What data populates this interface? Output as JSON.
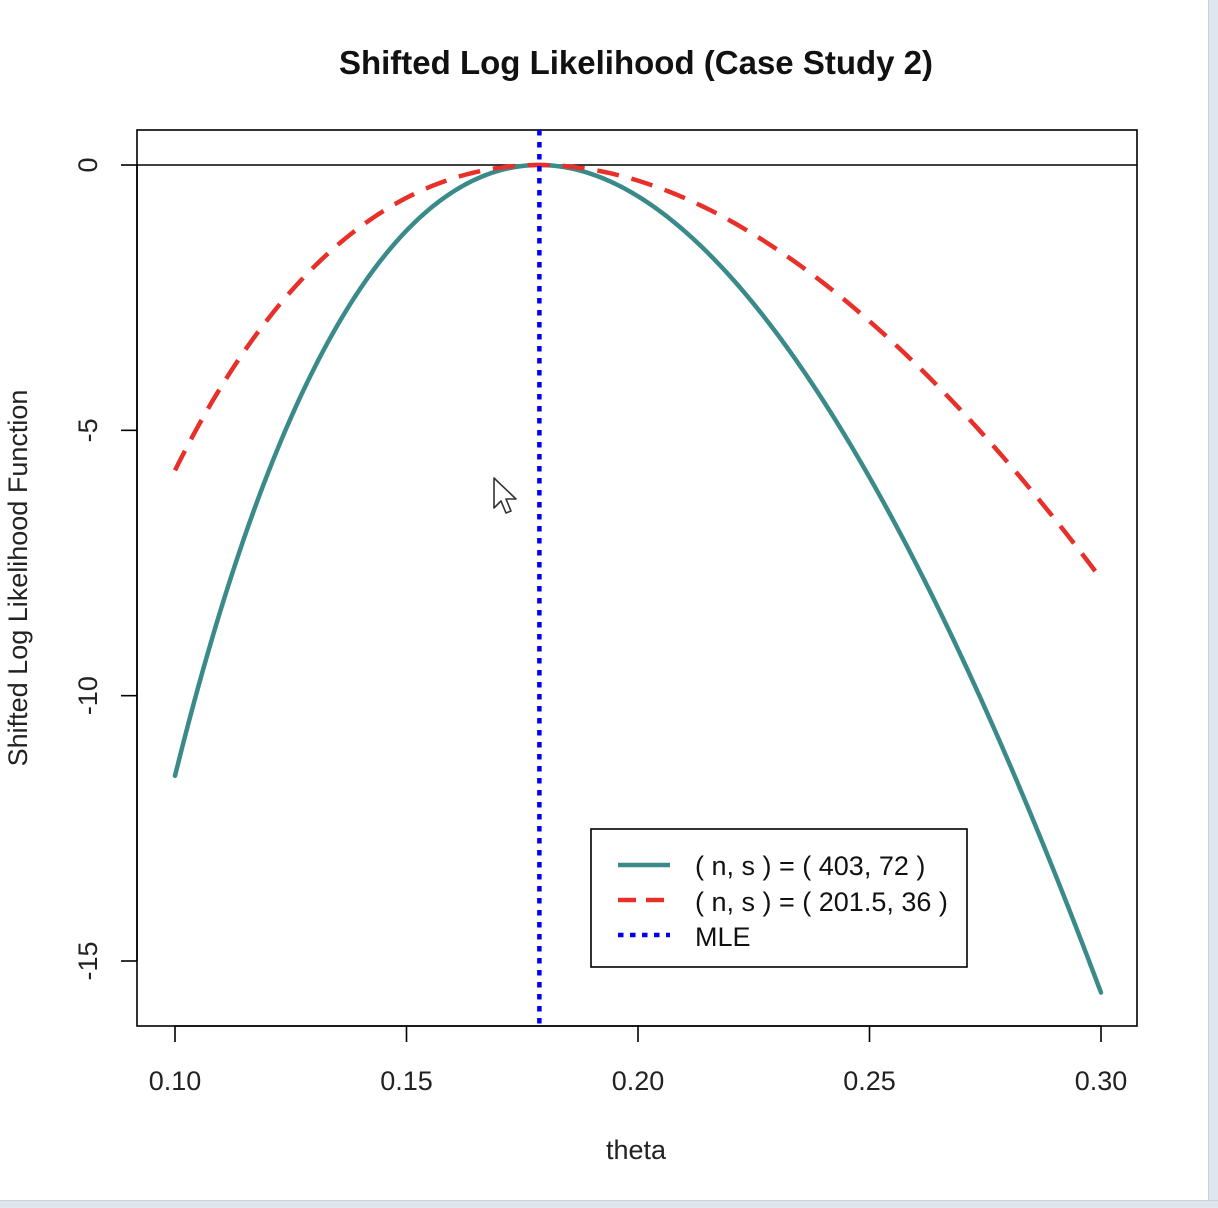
{
  "chart_data": {
    "type": "line",
    "title": "Shifted Log Likelihood (Case Study 2)",
    "xlabel": "theta",
    "ylabel": "Shifted Log Likelihood Function",
    "xlim": [
      0.1,
      0.3
    ],
    "ylim": [
      -16.0,
      0.65
    ],
    "x_ticks": [
      0.1,
      0.15,
      0.2,
      0.25,
      0.3
    ],
    "x_tick_labels": [
      "0.10",
      "0.15",
      "0.20",
      "0.25",
      "0.30"
    ],
    "y_ticks": [
      0,
      -5,
      -10,
      -15
    ],
    "y_tick_labels": [
      "0",
      "-5",
      "-10",
      "-15"
    ],
    "reference_hline": 0,
    "mle": 0.1787,
    "series": [
      {
        "name": "( n, s ) = ( 403, 72 )",
        "n": 403,
        "s": 72,
        "color": "#3a8a8a",
        "style": "solid",
        "start_value": -11.5,
        "end_value": -15.6
      },
      {
        "name": "( n, s ) = ( 201.5, 36 )",
        "n": 201.5,
        "s": 36,
        "color": "#e8302a",
        "style": "dashed",
        "start_value": -5.8,
        "end_value": -7.8
      }
    ],
    "mle_line": {
      "name": "MLE",
      "color": "#0000ee",
      "style": "dotted"
    },
    "legend": {
      "position": "bottom-right",
      "entries": [
        "( n, s ) = ( 403, 72 )",
        "( n, s ) = ( 201.5, 36 )",
        "MLE"
      ]
    }
  }
}
